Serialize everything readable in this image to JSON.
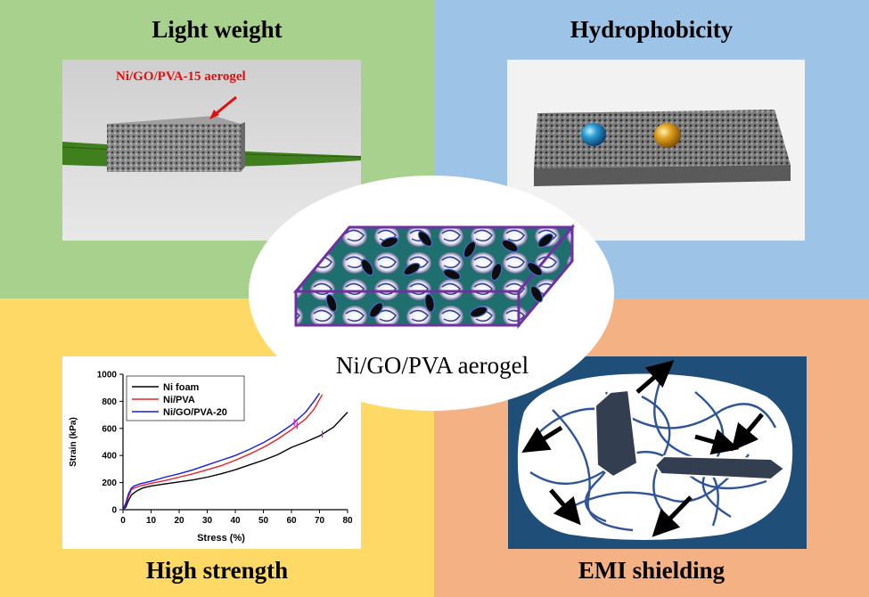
{
  "colors": {
    "top_left_bg": "#a8d18d",
    "top_right_bg": "#9dc3e6",
    "bottom_left_bg": "#ffd965",
    "bottom_right_bg": "#f4b183",
    "emi_bg": "#1f4e79",
    "series_ni_foam": "#000000",
    "series_ni_pva": "#e8202a",
    "series_ni_go_pva": "#1a1ae0",
    "annotation": "#e01010"
  },
  "panels": {
    "top_left": {
      "heading": "Light weight",
      "annotation": "Ni/GO/PVA-15 aerogel"
    },
    "top_right": {
      "heading": "Hydrophobicity"
    },
    "bottom_left": {
      "heading": "High strength"
    },
    "bottom_right": {
      "heading": "EMI shielding"
    },
    "center": {
      "label": "Ni/GO/PVA aerogel"
    }
  },
  "chart_data": {
    "type": "line",
    "xlabel": "Stress (%)",
    "ylabel": "Strain (kPa)",
    "xlim": [
      0,
      80
    ],
    "ylim": [
      0,
      1000
    ],
    "xticks": [
      "0",
      "10",
      "20",
      "30",
      "40",
      "50",
      "60",
      "70",
      "80"
    ],
    "yticks": [
      "0",
      "200",
      "400",
      "600",
      "800",
      "1000"
    ],
    "legend_position": "top-left",
    "series": [
      {
        "name": "Ni foam",
        "color": "#000000",
        "x": [
          0,
          1,
          2,
          3,
          5,
          7,
          10,
          15,
          20,
          25,
          30,
          35,
          40,
          45,
          50,
          55,
          60,
          65,
          70,
          75,
          80
        ],
        "y": [
          0,
          20,
          70,
          110,
          140,
          160,
          175,
          190,
          205,
          220,
          240,
          265,
          295,
          330,
          365,
          405,
          460,
          500,
          545,
          610,
          720
        ],
        "marker_x": 71
      },
      {
        "name": "Ni/PVA",
        "color": "#e8202a",
        "x": [
          0,
          1,
          2,
          3,
          4,
          6,
          10,
          15,
          20,
          25,
          30,
          35,
          40,
          45,
          50,
          55,
          60,
          65,
          68,
          71
        ],
        "y": [
          0,
          40,
          100,
          150,
          160,
          175,
          195,
          215,
          240,
          265,
          295,
          325,
          365,
          410,
          460,
          520,
          590,
          670,
          740,
          850
        ],
        "marker_x": 62
      },
      {
        "name": "Ni/GO/PVA-20",
        "color": "#1a1ae0",
        "x": [
          0,
          1,
          2,
          3,
          4,
          6,
          10,
          15,
          20,
          25,
          30,
          35,
          40,
          45,
          50,
          55,
          60,
          65,
          68,
          70
        ],
        "y": [
          0,
          50,
          120,
          160,
          175,
          190,
          210,
          240,
          265,
          295,
          330,
          365,
          400,
          445,
          495,
          555,
          625,
          720,
          800,
          860
        ],
        "marker_x": 61
      }
    ]
  }
}
